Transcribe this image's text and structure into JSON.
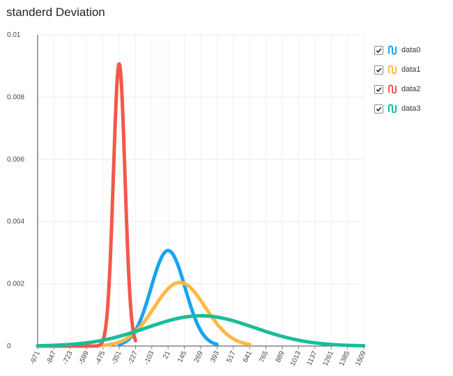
{
  "chart_data": {
    "type": "line",
    "title": "standerd Deviation",
    "xlabel": "",
    "ylabel": "",
    "xlim": [
      -971,
      1509
    ],
    "ylim": [
      0,
      0.01
    ],
    "y_ticks": [
      0,
      0.002,
      0.004,
      0.006,
      0.008,
      0.01
    ],
    "y_tick_labels": [
      "0",
      "0.002",
      "0.004",
      "0.006",
      "0.008",
      "0.01"
    ],
    "x_ticks": [
      -971,
      -847,
      -723,
      -599,
      -475,
      -351,
      -227,
      -103,
      21,
      145,
      269,
      393,
      517,
      641,
      765,
      889,
      1013,
      1137,
      1261,
      1385,
      1509
    ],
    "x_tick_labels": [
      "-971",
      "-847",
      "-723",
      "-599",
      "-475",
      "-351",
      "-227",
      "-103",
      "21",
      "145",
      "269",
      "393",
      "517",
      "641",
      "765",
      "889",
      "1013",
      "1137",
      "1261",
      "1385",
      "1509"
    ],
    "grid": true,
    "legend_position": "right",
    "series": [
      {
        "name": "data0",
        "color": "#1aa3f2",
        "distribution": "normal",
        "mean": 21,
        "std": 130,
        "x_range": [
          -351,
          393
        ]
      },
      {
        "name": "data1",
        "color": "#ffb845",
        "distribution": "normal",
        "mean": 110,
        "std": 195,
        "x_range": [
          -475,
          641
        ]
      },
      {
        "name": "data2",
        "color": "#f5574a",
        "distribution": "normal",
        "mean": -351,
        "std": 44,
        "x_range": [
          -971,
          -227
        ]
      },
      {
        "name": "data3",
        "color": "#19bd9a",
        "distribution": "normal",
        "mean": 269,
        "std": 410,
        "x_range": [
          -971,
          1509
        ]
      }
    ]
  }
}
